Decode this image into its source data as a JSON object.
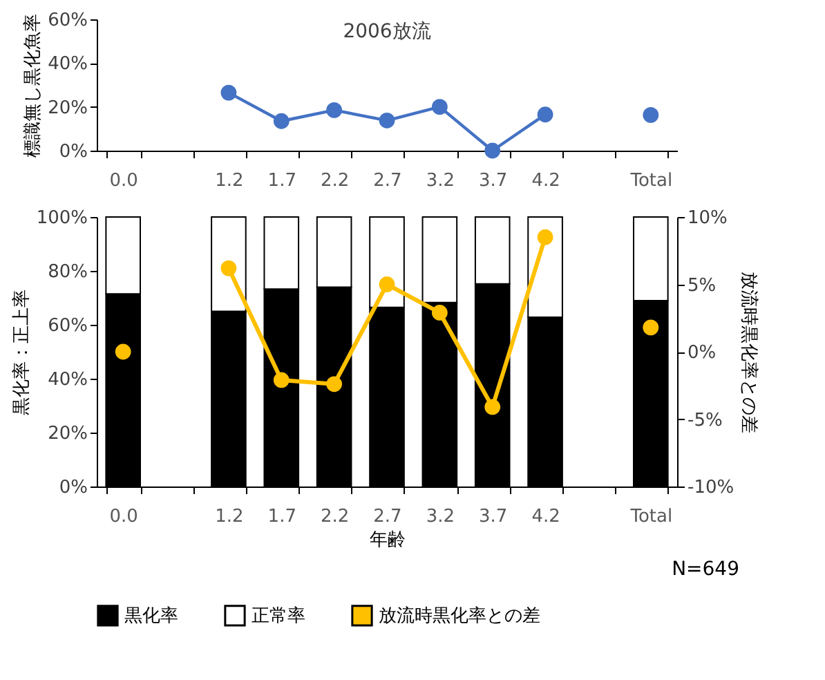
{
  "chart_data": [
    {
      "type": "line",
      "title": "2006放流",
      "ylabel": "標識無し黒化魚率",
      "categories": [
        "0.0",
        null,
        "1.2",
        "1.7",
        "2.2",
        "2.7",
        "3.2",
        "3.7",
        "4.2",
        null,
        "Total"
      ],
      "series": [
        {
          "color": "#4472c4",
          "values": [
            null,
            null,
            26.5,
            13.5,
            18.5,
            13.8,
            20,
            0,
            16.5,
            null,
            16.3
          ]
        }
      ],
      "ylim": [
        0,
        60
      ],
      "yticks": [
        {
          "value": 0,
          "label": "0%"
        },
        {
          "value": 20,
          "label": "20%"
        },
        {
          "value": 40,
          "label": "40%"
        },
        {
          "value": 60,
          "label": "60%"
        }
      ],
      "marker": "circle",
      "grid": false,
      "legend": false
    },
    {
      "type": "bar",
      "stacked": true,
      "xlabel": "年齢",
      "ylabel": "黒化率：正上率",
      "y2label": "放流時黒化率との差",
      "categories": [
        "0.0",
        null,
        "1.2",
        "1.7",
        "2.2",
        "2.7",
        "3.2",
        "3.7",
        "4.2",
        null,
        "Total"
      ],
      "series": [
        {
          "name": "黒化率",
          "color": "#000000",
          "values": [
            71.5,
            null,
            65,
            73.3,
            74,
            66.5,
            68.3,
            75.2,
            62.8,
            null,
            69
          ]
        },
        {
          "name": "正常率",
          "color": "#ffffff",
          "values": [
            28.5,
            null,
            35,
            26.7,
            26,
            33.5,
            31.7,
            24.8,
            37.2,
            null,
            31
          ]
        },
        {
          "name": "放流時黒化率との差",
          "type": "line",
          "axis": "y2",
          "color": "#ffc000",
          "marker": "circle",
          "values": [
            0,
            null,
            6.2,
            -2.1,
            -2.4,
            5.0,
            2.9,
            -4.1,
            8.5,
            null,
            1.8
          ]
        }
      ],
      "ylim": [
        0,
        100
      ],
      "yticks": [
        {
          "value": 0,
          "label": "0%"
        },
        {
          "value": 20,
          "label": "20%"
        },
        {
          "value": 40,
          "label": "40%"
        },
        {
          "value": 60,
          "label": "60%"
        },
        {
          "value": 80,
          "label": "80%"
        },
        {
          "value": 100,
          "label": "100%"
        }
      ],
      "y2lim": [
        -10,
        10
      ],
      "y2ticks": [
        {
          "value": -10,
          "label": "-10%"
        },
        {
          "value": -5,
          "label": "-5%"
        },
        {
          "value": 0,
          "label": "0%"
        },
        {
          "value": 5,
          "label": "5%"
        },
        {
          "value": 10,
          "label": "10%"
        }
      ],
      "annotations": [
        "N=649"
      ],
      "legend": "bottom",
      "grid": false
    }
  ]
}
